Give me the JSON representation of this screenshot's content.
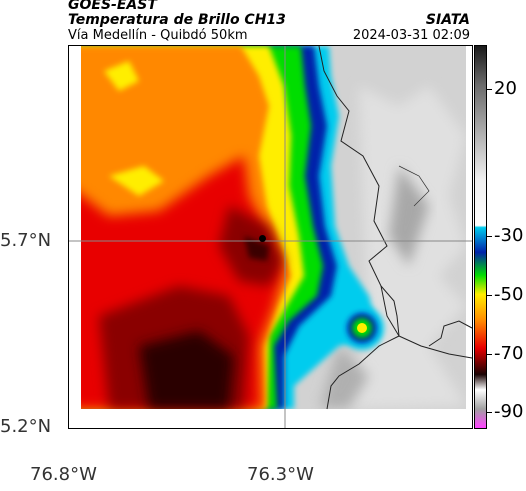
{
  "header": {
    "source": "GOES-EAST",
    "product": "Temperatura de Brillo CH13",
    "organization": "SIATA",
    "region": "Vía Medellín - Quibdó 50km",
    "datetime": "2024-03-31 02:09"
  },
  "map": {
    "latitude_labels": [
      "5.7°N",
      "5.2°N"
    ],
    "longitude_labels": [
      "76.8°W",
      "76.3°W"
    ],
    "gridlines": true,
    "marker": "city-marker"
  },
  "colorbar": {
    "labels": [
      "20",
      "-30",
      "-50",
      "-70",
      "-90"
    ],
    "values": [
      20,
      -30,
      -50,
      -70,
      -90
    ],
    "range": [
      -95,
      35
    ],
    "colors": {
      "cold": "#ff44ff",
      "dark": "#1a0404",
      "red": "#e80000",
      "orange": "#ff8800",
      "yellow": "#ffee00",
      "green": "#00dd00",
      "blue": "#0000aa",
      "cyan": "#00ccee",
      "gray": "#d0d0d0"
    }
  }
}
